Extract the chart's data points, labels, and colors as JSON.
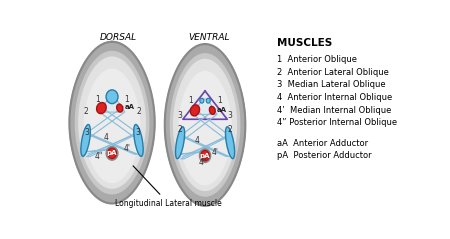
{
  "background": "#ffffff",
  "label_dorsal": "DORSAL",
  "label_ventral": "VENTRAL",
  "muscles_title": "MUSCLES",
  "legend_lines": [
    "1  Anterior Oblique",
    "2  Anterior Lateral Oblique",
    "3  Median Lateral Oblique",
    "4  Anterior Internal Oblique",
    "4’  Median Internal Oblique",
    "4” Posterior Internal Oblique"
  ],
  "legend_lines2": [
    "aA  Anterior Adductor",
    "pA  Posterior Adductor"
  ],
  "bottom_label": "Longitudinal Lateral muscle",
  "shell_outer": "#aaaaaa",
  "shell_mid": "#c8c8c8",
  "shell_inner": "#e2e2e2",
  "shell_content": "#ececec",
  "blue_light": "#6cc5e8",
  "blue_mid": "#4aadd4",
  "blue_dark": "#2a7aaa",
  "red_fill": "#dd2222",
  "red_dark": "#aa1111",
  "muscle_fill": "#d8eaf5",
  "muscle_line": "#88bbd8",
  "purple_line": "#8844aa",
  "number_color": "#333333"
}
